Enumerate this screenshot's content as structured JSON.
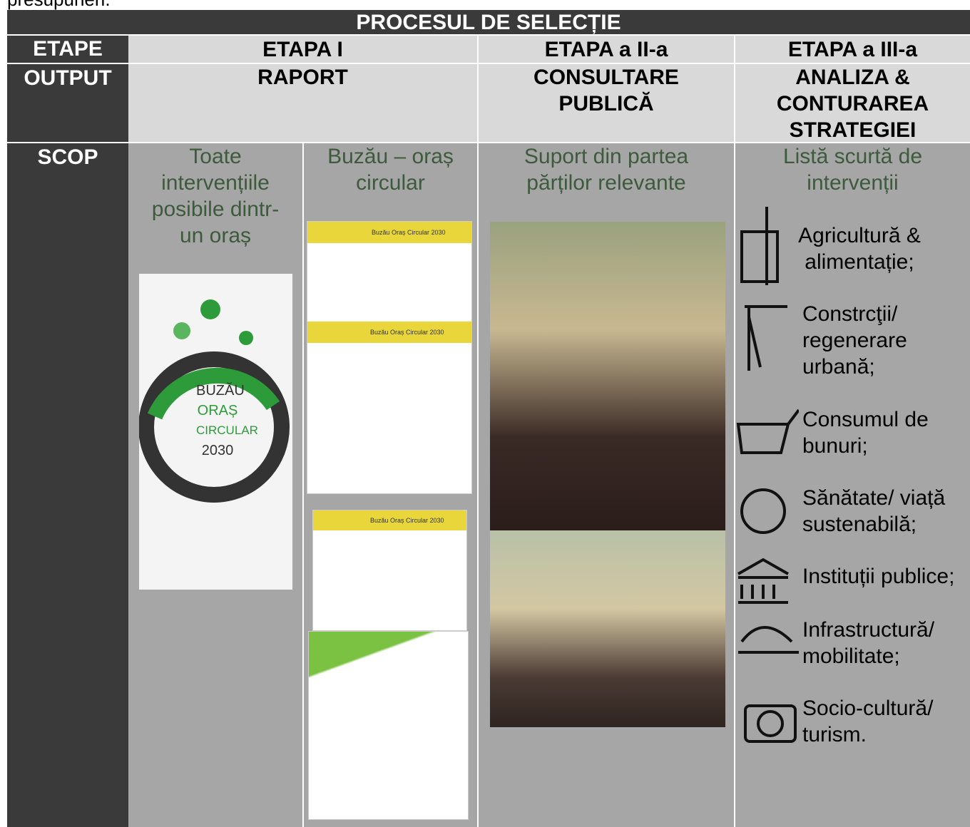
{
  "intro_text": "presupuneri.",
  "table": {
    "title": "PROCESUL DE SELECȚIE",
    "etape": {
      "label": "ETAPE",
      "stages": [
        "ETAPA I",
        "ETAPA a II-a",
        "ETAPA a III-a"
      ]
    },
    "output": {
      "label": "OUTPUT",
      "items": [
        "RAPORT",
        "CONSULTARE PUBLICĂ",
        "ANALIZA & CONTURAREA STRATEGIEI"
      ]
    },
    "scop": {
      "label": "SCOP",
      "items": [
        "Toate intervențiile posibile dintr-un oraș",
        "Buzău – oraș circular",
        "Suport din partea părților relevante",
        "Listă scurtă de intervenții"
      ],
      "interventions": [
        "Agricultură & alimentație;",
        "Constrcţii/ regenerare urbană;",
        "Consumul de bunuri;",
        "Sănătate/ viață sustenabilă;",
        "Instituții publice;",
        "Infrastructură/ mobilitate;",
        "Socio-cultură/ turism."
      ]
    },
    "images": {
      "logo_text": [
        "BUZĂU",
        "ORAȘ",
        "CIRCULAR",
        "2030"
      ],
      "document_headers": [
        "Buzău Oraș Circular 2030",
        "Buzău Oraș Circular 2030",
        "Buzău Oraș Circular 2030"
      ]
    }
  }
}
